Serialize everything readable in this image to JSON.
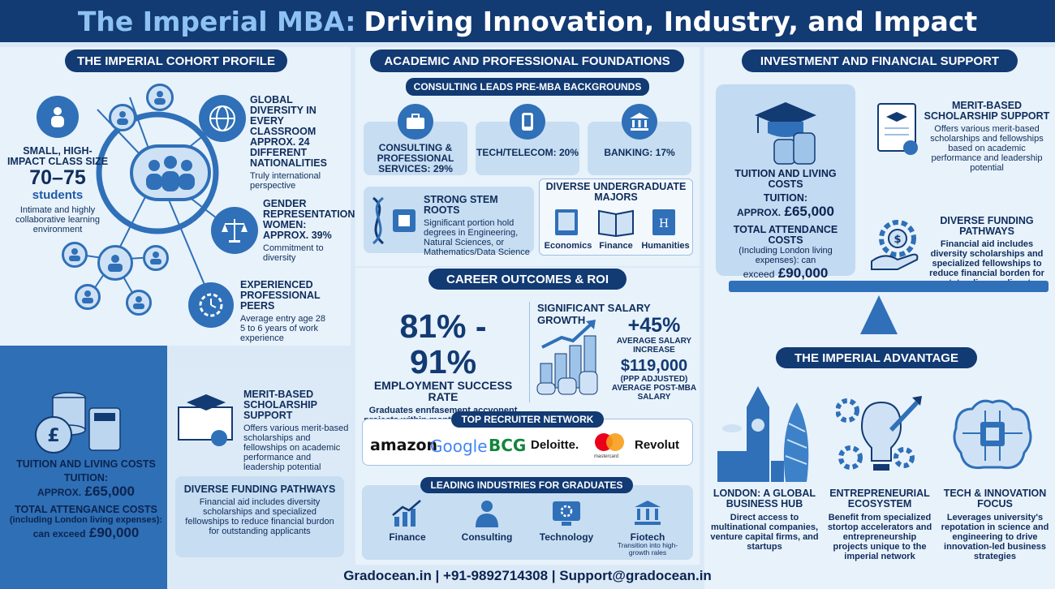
{
  "title": {
    "part1": "The Imperial MBA:",
    "part2": "Driving Innovation, Industry, and Impact"
  },
  "cohort": {
    "header": "THE IMPERIAL COHORT PROFILE",
    "class_size": {
      "title": "SMALL, HIGH-IMPACT CLASS SIZE",
      "value": "70–75",
      "unit": "students",
      "desc": "Intimate and highly collaborative learning environment"
    },
    "diversity": {
      "title": "GLOBAL DIVERSITY IN EVERY CLASSROOM APPROX. 24 DIFFERENT NATIONALITIES",
      "desc": "Truly international perspective"
    },
    "gender": {
      "title": "GENDER REPRESENTATION WOMEN: APPROX. 39%",
      "desc": "Commitment to diversity"
    },
    "peers": {
      "title": "EXPERIENCED PROFESSIONAL PEERS",
      "line1": "Average entry age 28",
      "line2": "5 to 6 years of work experience"
    }
  },
  "left_bottom": {
    "tuition_title": "TUITION AND LIVING COSTS",
    "tuition_label": "TUITION:",
    "tuition_prefix": "APPROX.",
    "tuition_value": "£65,000",
    "total_title": "TOTAL ATTENGANCE COSTS",
    "total_sub": "(including London living expenses):",
    "total_prefix": "can exceed",
    "total_value": "£90,000",
    "scholarship_title": "MERIT-BASED SCHOLARSHIP SUPPORT",
    "scholarship_desc": "Offers various merit-based scholarships and fellowships on academic performance and leadership potential",
    "funding_title": "DIVERSE FUNDING PATHWAYS",
    "funding_desc": "Financial aid includes diversity scholarships and specialized fellowships to reduce financial burdon for outstanding applicants"
  },
  "academic": {
    "header": "ACADEMIC AND PROFESSIONAL FOUNDATIONS",
    "sub_header": "CONSULTING LEADS PRE-MBA BACKGROUNDS",
    "backgrounds": [
      {
        "label": "CONSULTING & PROFESSIONAL SERVICES: 29%",
        "icon": "briefcase-icon"
      },
      {
        "label": "TECH/TELECOM: 20%",
        "icon": "phone-icon"
      },
      {
        "label": "BANKING: 17%",
        "icon": "bank-icon"
      }
    ],
    "stem_title": "STRONG STEM ROOTS",
    "stem_desc": "Significant portion hold degrees in Engineering, Natural Sciences, or Mathematics/Data Science",
    "majors_title": "DIVERSE UNDERGRADUATE MAJORS",
    "majors": [
      "Economics",
      "Finance",
      "Humanities"
    ]
  },
  "career": {
    "header": "CAREER OUTCOMES & ROI",
    "employment_value": "81% - 91%",
    "employment_title": "EMPLOYMENT SUCCESS RATE",
    "employment_desc": "Graduates ennfasement accvonent projects within months of completing degree",
    "salary_title": "SIGNIFICANT SALARY GROWTH",
    "salary_increase": "+45%",
    "salary_increase_label": "AVERAGE SALARY INCREASE",
    "salary_value": "$119,000",
    "salary_sub": "(PPP ADJUSTED) AVERAGE POST-MBA SALARY",
    "recruiter_header": "TOP RECRUITER NETWORK",
    "recruiters": [
      "amazon",
      "Google",
      "BCG",
      "Deloitte.",
      "mastercard",
      "Revolut"
    ],
    "industries_header": "LEADING INDUSTRIES FOR GRADUATES",
    "industries": [
      "Finance",
      "Consulting",
      "Technology",
      "Fiotech"
    ],
    "fintech_sub": "Transition into high-growth rales"
  },
  "investment": {
    "header": "INVESTMENT AND FINANCIAL SUPPORT",
    "tuition_title": "TUITION AND LIVING COSTS",
    "tuition_label": "TUITION:",
    "tuition_prefix": "APPROX.",
    "tuition_value": "£65,000",
    "total_title": "TOTAL ATTENDANCE COSTS",
    "total_sub": "(Including London living expenses): can",
    "total_prefix": "exceed",
    "total_value": "£90,000",
    "scholarship_title": "MERIT-BASED SCHOLARSHIP SUPPORT",
    "scholarship_desc": "Offers various merit-based scholarships and fellowships based on academic performance and leadership potential",
    "funding_title": "DIVERSE FUNDING PATHWAYS",
    "funding_desc": "Financial aid includes diversity scholarships and specialized fellowships to reduce financial borden for outstanding applicants"
  },
  "advantage": {
    "header": "THE IMPERIAL ADVANTAGE",
    "items": [
      {
        "title": "LONDON: A GLOBAL BUSINESS HUB",
        "desc": "Direct access to multinational companies, venture capital firms, and startups"
      },
      {
        "title": "ENTREPRENEURIAL ECOSYSTEM",
        "desc": "Benefit from specialized stortop accelerators and entrepreneurship projects unique to the imperial network"
      },
      {
        "title": "TECH & INNOVATION FOCUS",
        "desc": "Leverages university's repotation in science and engineering to drive innovation-led business strategies"
      }
    ]
  },
  "footer": {
    "text": "Gradocean.in | +91-9892714308 | Support@gradocean.in"
  },
  "colors": {
    "navy": "#123a73",
    "blue": "#2f70b8",
    "light": "#e8f2fb",
    "card": "#c7ddf2"
  }
}
